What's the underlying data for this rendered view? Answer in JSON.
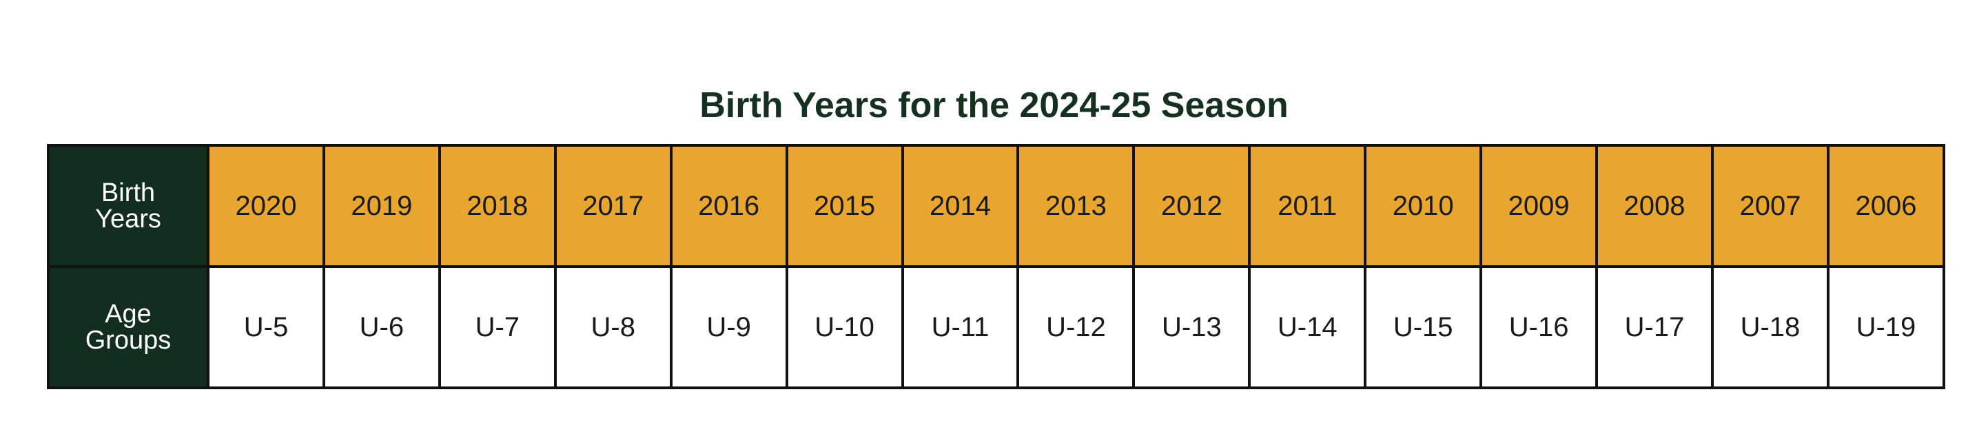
{
  "title": "Birth Years for the 2024-25 Season",
  "table": {
    "row_headers": {
      "birth_years": "Birth Years",
      "age_groups": "Age Groups"
    },
    "years": [
      "2020",
      "2019",
      "2018",
      "2017",
      "2016",
      "2015",
      "2014",
      "2013",
      "2012",
      "2011",
      "2010",
      "2009",
      "2008",
      "2007",
      "2006"
    ],
    "age_groups": [
      "U-5",
      "U-6",
      "U-7",
      "U-8",
      "U-9",
      "U-10",
      "U-11",
      "U-12",
      "U-13",
      "U-14",
      "U-15",
      "U-16",
      "U-17",
      "U-18",
      "U-19"
    ]
  },
  "colors": {
    "title": "#15301f",
    "header_bg": "#132d1e",
    "year_bg": "#e8a631",
    "age_bg": "#ffffff",
    "border": "#111111"
  }
}
